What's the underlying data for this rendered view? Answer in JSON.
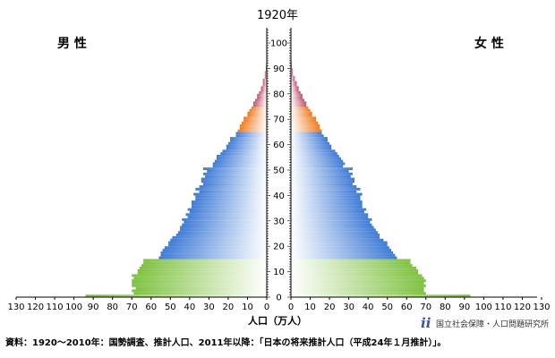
{
  "chart_data": {
    "type": "bar",
    "orientation": "horizontal-pyramid",
    "title": "1920年",
    "male_label": "男 性",
    "female_label": "女 性",
    "xlabel": "人口（万人）",
    "x_ticks": [
      130,
      120,
      110,
      100,
      90,
      80,
      70,
      60,
      50,
      40,
      30,
      20,
      10,
      0
    ],
    "x_ticks_right": [
      0,
      10,
      20,
      30,
      40,
      50,
      60,
      70,
      80,
      90,
      100,
      110,
      120,
      130
    ],
    "y_ticks": [
      0,
      10,
      20,
      30,
      40,
      50,
      60,
      70,
      80,
      90,
      100
    ],
    "xlim": [
      0,
      130
    ],
    "ylim": [
      0,
      105
    ],
    "age_groups": [
      {
        "name": "0-14",
        "color": "#7fc241",
        "ages": [
          0,
          14
        ]
      },
      {
        "name": "15-64",
        "color": "#3f7bd6",
        "ages": [
          15,
          64
        ]
      },
      {
        "name": "65-74",
        "color": "#ee7a1e",
        "ages": [
          65,
          74
        ]
      },
      {
        "name": "75+",
        "color": "#c0506a",
        "ages": [
          75,
          100
        ]
      }
    ],
    "male": [
      94,
      69,
      70,
      68,
      70,
      70,
      70,
      69,
      70,
      67,
      67,
      66,
      65,
      64,
      64,
      56,
      55,
      55,
      54,
      53,
      51,
      51,
      50,
      49,
      47,
      46,
      45,
      45,
      44,
      43,
      44,
      41,
      42,
      40,
      41,
      39,
      39,
      39,
      37,
      37,
      38,
      35,
      37,
      35,
      33,
      34,
      34,
      32,
      33,
      31,
      33,
      28,
      28,
      27,
      26,
      26,
      24,
      23,
      21,
      21,
      20,
      19,
      19,
      16,
      16,
      15,
      14,
      14,
      13,
      12,
      12,
      10,
      10,
      9,
      8,
      7,
      7,
      6,
      5,
      5,
      4,
      3,
      3,
      2,
      2,
      2,
      1,
      1,
      1,
      0.5,
      0.5,
      0.3,
      0.2,
      0.1,
      0.1,
      0.05,
      0,
      0,
      0,
      0,
      0
    ],
    "female": [
      93,
      70,
      69,
      69,
      70,
      69,
      70,
      69,
      68,
      66,
      66,
      65,
      63,
      62,
      62,
      55,
      54,
      53,
      52,
      51,
      50,
      50,
      48,
      46,
      46,
      45,
      44,
      43,
      42,
      41,
      42,
      40,
      40,
      38,
      39,
      37,
      37,
      37,
      36,
      36,
      37,
      34,
      36,
      34,
      32,
      33,
      33,
      31,
      32,
      30,
      32,
      27,
      28,
      27,
      26,
      25,
      24,
      23,
      21,
      21,
      20,
      19,
      19,
      17,
      16,
      16,
      15,
      15,
      14,
      13,
      13,
      11,
      11,
      10,
      9,
      8,
      8,
      7,
      6,
      6,
      5,
      4,
      4,
      3,
      3,
      2,
      2,
      1,
      1,
      1,
      0.5,
      0.4,
      0.3,
      0.2,
      0.1,
      0.05,
      0,
      0,
      0,
      0,
      0
    ]
  },
  "source_note": "資料：1920～2010年：国勢調査、推計人口、2011年以降：「日本の将来推計人口（平成24年１月推計）」。",
  "brand": "国立社会保障・人口問題研究所",
  "brand_mark": "ii"
}
